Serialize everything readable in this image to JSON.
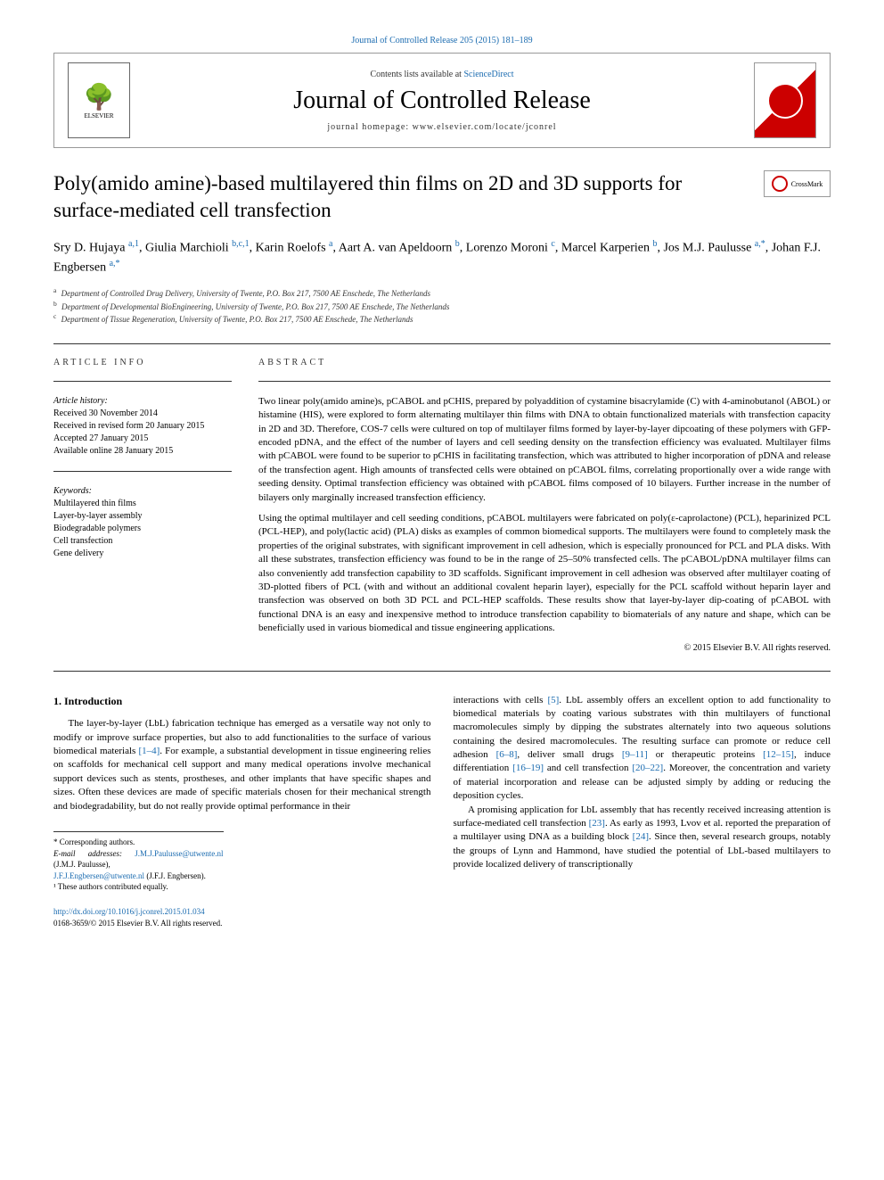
{
  "top_citation": "Journal of Controlled Release 205 (2015) 181–189",
  "header": {
    "contents_prefix": "Contents lists available at ",
    "contents_link": "ScienceDirect",
    "journal_name": "Journal of Controlled Release",
    "homepage_prefix": "journal homepage: ",
    "homepage_url": "www.elsevier.com/locate/jconrel",
    "elsevier_label": "ELSEVIER",
    "crossmark_label": "CrossMark"
  },
  "title": "Poly(amido amine)-based multilayered thin films on 2D and 3D supports for surface-mediated cell transfection",
  "authors_html": "Sry D. Hujaya <sup>a,1</sup>, Giulia Marchioli <sup>b,c,1</sup>, Karin Roelofs <sup>a</sup>, Aart A. van Apeldoorn <sup>b</sup>, Lorenzo Moroni <sup>c</sup>, Marcel Karperien <sup>b</sup>, Jos M.J. Paulusse <sup>a,*</sup>, Johan F.J. Engbersen <sup>a,*</sup>",
  "affiliations": {
    "a": "Department of Controlled Drug Delivery, University of Twente, P.O. Box 217, 7500 AE Enschede, The Netherlands",
    "b": "Department of Developmental BioEngineering, University of Twente, P.O. Box 217, 7500 AE Enschede, The Netherlands",
    "c": "Department of Tissue Regeneration, University of Twente, P.O. Box 217, 7500 AE Enschede, The Netherlands"
  },
  "article_info": {
    "heading": "ARTICLE INFO",
    "history_title": "Article history:",
    "history": {
      "received": "Received 30 November 2014",
      "revised": "Received in revised form 20 January 2015",
      "accepted": "Accepted 27 January 2015",
      "online": "Available online 28 January 2015"
    },
    "keywords_title": "Keywords:",
    "keywords": [
      "Multilayered thin films",
      "Layer-by-layer assembly",
      "Biodegradable polymers",
      "Cell transfection",
      "Gene delivery"
    ]
  },
  "abstract": {
    "heading": "ABSTRACT",
    "p1": "Two linear poly(amido amine)s, pCABOL and pCHIS, prepared by polyaddition of cystamine bisacrylamide (C) with 4-aminobutanol (ABOL) or histamine (HIS), were explored to form alternating multilayer thin films with DNA to obtain functionalized materials with transfection capacity in 2D and 3D. Therefore, COS-7 cells were cultured on top of multilayer films formed by layer-by-layer dipcoating of these polymers with GFP-encoded pDNA, and the effect of the number of layers and cell seeding density on the transfection efficiency was evaluated. Multilayer films with pCABOL were found to be superior to pCHIS in facilitating transfection, which was attributed to higher incorporation of pDNA and release of the transfection agent. High amounts of transfected cells were obtained on pCABOL films, correlating proportionally over a wide range with seeding density. Optimal transfection efficiency was obtained with pCABOL films composed of 10 bilayers. Further increase in the number of bilayers only marginally increased transfection efficiency.",
    "p2": "Using the optimal multilayer and cell seeding conditions, pCABOL multilayers were fabricated on poly(ε-caprolactone) (PCL), heparinized PCL (PCL-HEP), and poly(lactic acid) (PLA) disks as examples of common biomedical supports. The multilayers were found to completely mask the properties of the original substrates, with significant improvement in cell adhesion, which is especially pronounced for PCL and PLA disks. With all these substrates, transfection efficiency was found to be in the range of 25–50% transfected cells. The pCABOL/pDNA multilayer films can also conveniently add transfection capability to 3D scaffolds. Significant improvement in cell adhesion was observed after multilayer coating of 3D-plotted fibers of PCL (with and without an additional covalent heparin layer), especially for the PCL scaffold without heparin layer and transfection was observed on both 3D PCL and PCL-HEP scaffolds. These results show that layer-by-layer dip-coating of pCABOL with functional DNA is an easy and inexpensive method to introduce transfection capability to biomaterials of any nature and shape, which can be beneficially used in various biomedical and tissue engineering applications.",
    "copyright": "© 2015 Elsevier B.V. All rights reserved."
  },
  "intro": {
    "heading": "1. Introduction",
    "col1_p1_a": "The layer-by-layer (LbL) fabrication technique has emerged as a versatile way not only to modify or improve surface properties, but also to add functionalities to the surface of various biomedical materials ",
    "col1_ref1": "[1–4]",
    "col1_p1_b": ". For example, a substantial development in tissue engineering relies on scaffolds for mechanical cell support and many medical operations involve mechanical support devices such as stents, prostheses, and other implants that have specific shapes and sizes. Often these devices are made of specific materials chosen for their mechanical strength and biodegradability, but do not really provide optimal performance in their",
    "col2_p1_a": "interactions with cells ",
    "col2_ref5": "[5]",
    "col2_p1_b": ". LbL assembly offers an excellent option to add functionality to biomedical materials by coating various substrates with thin multilayers of functional macromolecules simply by dipping the substrates alternately into two aqueous solutions containing the desired macromolecules. The resulting surface can promote or reduce cell adhesion ",
    "col2_ref68": "[6–8]",
    "col2_p1_c": ", deliver small drugs ",
    "col2_ref911": "[9–11]",
    "col2_p1_d": " or therapeutic proteins ",
    "col2_ref1215": "[12–15]",
    "col2_p1_e": ", induce differentiation ",
    "col2_ref1619": "[16–19]",
    "col2_p1_f": " and cell transfection ",
    "col2_ref2022": "[20–22]",
    "col2_p1_g": ". Moreover, the concentration and variety of material incorporation and release can be adjusted simply by adding or reducing the deposition cycles.",
    "col2_p2_a": "A promising application for LbL assembly that has recently received increasing attention is surface-mediated cell transfection ",
    "col2_ref23": "[23]",
    "col2_p2_b": ". As early as 1993, Lvov et al. reported the preparation of a multilayer using DNA as a building block ",
    "col2_ref24": "[24]",
    "col2_p2_c": ". Since then, several research groups, notably the groups of Lynn and Hammond, have studied the potential of LbL-based multilayers to provide localized delivery of transcriptionally"
  },
  "footnotes": {
    "corr": "* Corresponding authors.",
    "email_label": "E-mail addresses: ",
    "email1": "J.M.J.Paulusse@utwente.nl",
    "email1_name": " (J.M.J. Paulusse),",
    "email2": "J.F.J.Engbersen@utwente.nl",
    "email2_name": " (J.F.J. Engbersen).",
    "note1": "¹ These authors contributed equally."
  },
  "bottom": {
    "doi": "http://dx.doi.org/10.1016/j.jconrel.2015.01.034",
    "issn": "0168-3659/© 2015 Elsevier B.V. All rights reserved."
  }
}
